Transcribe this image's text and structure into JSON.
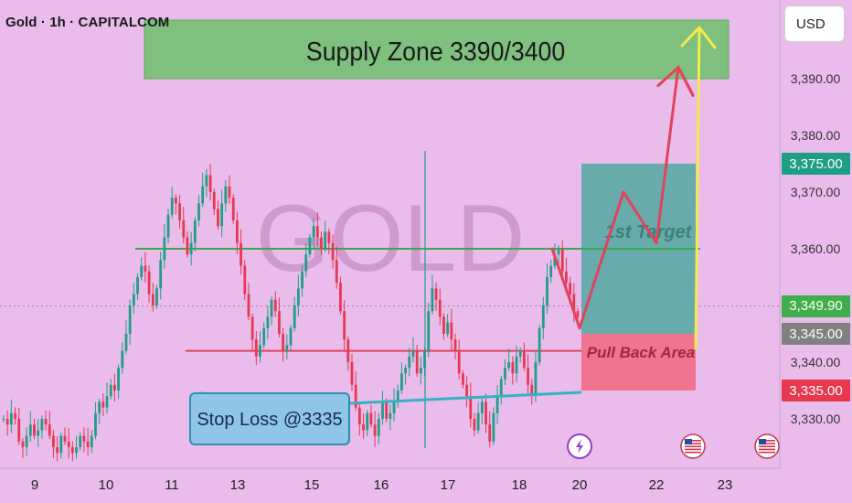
{
  "header": {
    "symbol_title": "Gold · 1h · CAPITALCOM",
    "currency_button": "USD"
  },
  "watermark": "GOLD",
  "colors": {
    "background": "#e9bcec",
    "candle_up": "#1f9e86",
    "candle_down": "#e8384f",
    "supply_zone": "#7fc07f",
    "target_box": "#5aa9a5",
    "pullback_box": "#f0708a",
    "stoploss_box": "#8fc6e8",
    "projection_line": "#e0445a",
    "arrow_line": "#f5ea4d",
    "green_level": "#3da651",
    "red_level": "#e0445a",
    "teal_line": "#36b3c0"
  },
  "chart_data": {
    "type": "line",
    "title": "",
    "instrument": "Gold · 1h · CAPITALCOM",
    "currency": "USD",
    "ylim": [
      3322,
      3406
    ],
    "grid": false,
    "y_ticks": [
      "3,390.00",
      "3,380.00",
      "3,370.00",
      "3,360.00",
      "3,340.00",
      "3,330.00"
    ],
    "x_ticks": [
      "9",
      "10",
      "11",
      "13",
      "15",
      "16",
      "17",
      "18",
      "20",
      "22",
      "23"
    ],
    "price_badges": [
      {
        "label": "3,375.00",
        "price": 3375,
        "color": "#1f9e86"
      },
      {
        "label": "3,349.90",
        "price": 3349.9,
        "color": "#3fae4b"
      },
      {
        "label": "3,345.00",
        "price": 3345,
        "color": "#808080"
      },
      {
        "label": "3,335.00",
        "price": 3335,
        "color": "#e8384f"
      }
    ],
    "levels": [
      {
        "name": "resistance",
        "price": 3360,
        "color": "#3da651"
      },
      {
        "name": "support",
        "price": 3342,
        "color": "#e0445a"
      }
    ],
    "annotations": {
      "supply_zone": {
        "label": "Supply Zone 3390/3400",
        "price_top": 3400,
        "price_bottom": 3390
      },
      "target": {
        "label": "1st Target",
        "price_top": 3375,
        "price_bottom": 3345
      },
      "pullback": {
        "label": "Pull Back Area",
        "price_top": 3345,
        "price_bottom": 3335
      },
      "stop_loss": {
        "label": "Stop Loss @3335"
      }
    },
    "projection_path": [
      {
        "x": "19",
        "price": 3360
      },
      {
        "x": "20",
        "price": 3346
      },
      {
        "x": "21",
        "price": 3370
      },
      {
        "x": "22",
        "price": 3361
      },
      {
        "x": "22.5",
        "price": 3392
      },
      {
        "x": "22.8",
        "price": 3387
      }
    ],
    "price_series": [
      3330,
      3329,
      3331,
      3330,
      3326,
      3325,
      3327,
      3329,
      3327,
      3328,
      3330,
      3329,
      3327,
      3325,
      3324,
      3327,
      3326,
      3325,
      3324,
      3325,
      3327,
      3326,
      3325,
      3327,
      3331,
      3333,
      3332,
      3334,
      3336,
      3335,
      3339,
      3342,
      3345,
      3350,
      3352,
      3355,
      3357,
      3356,
      3352,
      3350,
      3353,
      3358,
      3362,
      3366,
      3369,
      3368,
      3365,
      3362,
      3359,
      3361,
      3365,
      3368,
      3371,
      3373,
      3370,
      3367,
      3364,
      3368,
      3371,
      3369,
      3365,
      3361,
      3357,
      3352,
      3348,
      3344,
      3341,
      3343,
      3346,
      3348,
      3351,
      3349,
      3345,
      3342,
      3343,
      3346,
      3350,
      3353,
      3356,
      3359,
      3362,
      3364,
      3362,
      3360,
      3363,
      3361,
      3358,
      3354,
      3349,
      3344,
      3340,
      3336,
      3332,
      3329,
      3328,
      3331,
      3329,
      3327,
      3330,
      3333,
      3330,
      3331,
      3333,
      3335,
      3338,
      3339,
      3341,
      3342,
      3338,
      3339,
      3342,
      3349,
      3353,
      3351,
      3348,
      3345,
      3347,
      3344,
      3342,
      3338,
      3336,
      3334,
      3330,
      3328,
      3331,
      3333,
      3329,
      3326,
      3331,
      3334,
      3337,
      3339,
      3340,
      3338,
      3341,
      3342,
      3339,
      3336,
      3334,
      3340,
      3346,
      3350,
      3355,
      3357,
      3359,
      3360,
      3356,
      3354,
      3352,
      3349,
      3348
    ]
  }
}
